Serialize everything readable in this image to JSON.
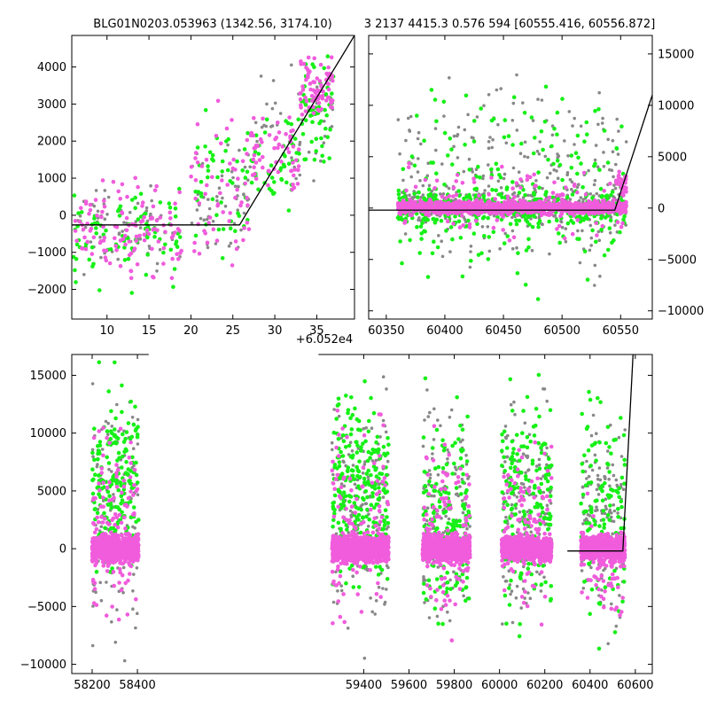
{
  "figure": {
    "title_left": "BLG01N0203.053963 (1342.56, 3174.10)",
    "title_right": "3 2137 4415.3 0.576 594 [60555.416, 60556.872]",
    "offset_label": "+6.052e4",
    "colors": {
      "pink": "#f05cdc",
      "green": "#16f016",
      "grey": "#888888",
      "model": "#000000"
    }
  },
  "chart_data": [
    {
      "id": "zoom-left",
      "type": "scatter",
      "title": "BLG01N0203.053963 (1342.56, 3174.10)",
      "x_offset_label": "+6.052e4",
      "xlim": [
        5.8,
        39.5
      ],
      "ylim": [
        -2800,
        4850
      ],
      "xticks": [
        10,
        15,
        20,
        25,
        30,
        35
      ],
      "yticks": [
        -2000,
        -1000,
        0,
        1000,
        2000,
        3000,
        4000
      ],
      "model_line": {
        "x": [
          5.8,
          25.8,
          39.5
        ],
        "y": [
          -260,
          -260,
          4850
        ]
      },
      "series": [
        {
          "color": "pink",
          "clusters": [
            {
              "x": [
                6,
                19
              ],
              "y": [
                -2200,
                1400
              ],
              "n": 120
            },
            {
              "x": [
                20,
                27
              ],
              "y": [
                -2500,
                3500
              ],
              "n": 60
            },
            {
              "x": [
                27,
                33
              ],
              "y": [
                0,
                3000
              ],
              "n": 60
            },
            {
              "x": [
                33,
                37
              ],
              "y": [
                2000,
                4700
              ],
              "n": 80
            }
          ]
        },
        {
          "color": "green",
          "clusters": [
            {
              "x": [
                6,
                19
              ],
              "y": [
                -2400,
                1400
              ],
              "n": 90
            },
            {
              "x": [
                20,
                27
              ],
              "y": [
                -1500,
                3400
              ],
              "n": 50
            },
            {
              "x": [
                27,
                33
              ],
              "y": [
                -200,
                3200
              ],
              "n": 50
            },
            {
              "x": [
                33,
                37
              ],
              "y": [
                1000,
                4700
              ],
              "n": 60
            }
          ]
        },
        {
          "color": "grey",
          "clusters": [
            {
              "x": [
                6,
                19
              ],
              "y": [
                -2000,
                1200
              ],
              "n": 70
            },
            {
              "x": [
                20,
                27
              ],
              "y": [
                -1500,
                2500
              ],
              "n": 50
            },
            {
              "x": [
                27,
                37
              ],
              "y": [
                0,
                4500
              ],
              "n": 40
            }
          ]
        }
      ]
    },
    {
      "id": "zoom-right",
      "type": "scatter",
      "xlim": [
        60335,
        60577
      ],
      "ylim": [
        -10800,
        16800
      ],
      "xticks": [
        60350,
        60400,
        60450,
        60500,
        60550
      ],
      "yticks": [
        -10000,
        -5000,
        0,
        5000,
        10000,
        15000
      ],
      "model_line": {
        "x": [
          60335,
          60545,
          60577
        ],
        "y": [
          -200,
          -200,
          11000
        ]
      },
      "series": [
        {
          "color": "pink",
          "clusters": [
            {
              "x": [
                60360,
                60555
              ],
              "y": [
                -800,
                900
              ],
              "n": 1000
            },
            {
              "x": [
                60360,
                60555
              ],
              "y": [
                -4000,
                5000
              ],
              "n": 150
            },
            {
              "x": [
                60546,
                60555
              ],
              "y": [
                0,
                5000
              ],
              "n": 30
            }
          ]
        },
        {
          "color": "green",
          "clusters": [
            {
              "x": [
                60360,
                60555
              ],
              "y": [
                -2500,
                2500
              ],
              "n": 350
            },
            {
              "x": [
                60360,
                60555
              ],
              "y": [
                -10500,
                15500
              ],
              "n": 200
            }
          ]
        },
        {
          "color": "grey",
          "clusters": [
            {
              "x": [
                60360,
                60555
              ],
              "y": [
                -2000,
                2500
              ],
              "n": 300
            },
            {
              "x": [
                60360,
                60555
              ],
              "y": [
                -10500,
                16500
              ],
              "n": 250
            }
          ]
        }
      ]
    },
    {
      "id": "full",
      "type": "scatter",
      "xlim": [
        58110,
        60675
      ],
      "ylim": [
        -10800,
        16800
      ],
      "xticks": [
        58200,
        58400,
        59400,
        59600,
        59800,
        60000,
        60200,
        60400,
        60600
      ],
      "yticks": [
        -10000,
        -5000,
        0,
        5000,
        10000,
        15000
      ],
      "axis_gap": [
        58450,
        59200
      ],
      "model_line": {
        "x": [
          60300,
          60545,
          60590
        ],
        "y": [
          -200,
          -200,
          16800
        ]
      },
      "series": [
        {
          "color": "pink",
          "clusters": [
            {
              "x": [
                58200,
                58405
              ],
              "y": [
                -1600,
                1600
              ],
              "n": 900
            },
            {
              "x": [
                59260,
                59510
              ],
              "y": [
                -1600,
                1600
              ],
              "n": 900
            },
            {
              "x": [
                59660,
                59870
              ],
              "y": [
                -1600,
                1600
              ],
              "n": 700
            },
            {
              "x": [
                60010,
                60230
              ],
              "y": [
                -1600,
                1600
              ],
              "n": 700
            },
            {
              "x": [
                60360,
                60555
              ],
              "y": [
                -1600,
                1600
              ],
              "n": 600
            },
            {
              "x": [
                58200,
                58405
              ],
              "y": [
                -10000,
                14000
              ],
              "n": 120
            },
            {
              "x": [
                59260,
                59510
              ],
              "y": [
                -10000,
                14000
              ],
              "n": 120
            },
            {
              "x": [
                59660,
                59870
              ],
              "y": [
                -10000,
                14000
              ],
              "n": 100
            },
            {
              "x": [
                60010,
                60230
              ],
              "y": [
                -10000,
                14000
              ],
              "n": 100
            },
            {
              "x": [
                60360,
                60555
              ],
              "y": [
                -8000,
                5000
              ],
              "n": 60
            }
          ]
        },
        {
          "color": "green",
          "clusters": [
            {
              "x": [
                58200,
                58405
              ],
              "y": [
                -5000,
                16500
              ],
              "n": 200
            },
            {
              "x": [
                59260,
                59510
              ],
              "y": [
                -6000,
                16500
              ],
              "n": 260
            },
            {
              "x": [
                59660,
                59870
              ],
              "y": [
                -9000,
                16000
              ],
              "n": 180
            },
            {
              "x": [
                60010,
                60230
              ],
              "y": [
                -10000,
                16500
              ],
              "n": 200
            },
            {
              "x": [
                60360,
                60555
              ],
              "y": [
                -10000,
                16000
              ],
              "n": 130
            }
          ]
        },
        {
          "color": "grey",
          "clusters": [
            {
              "x": [
                58200,
                58405
              ],
              "y": [
                -10500,
                16000
              ],
              "n": 150
            },
            {
              "x": [
                59260,
                59510
              ],
              "y": [
                -10500,
                16500
              ],
              "n": 170
            },
            {
              "x": [
                59660,
                59870
              ],
              "y": [
                -10500,
                16000
              ],
              "n": 140
            },
            {
              "x": [
                60010,
                60230
              ],
              "y": [
                -10500,
                16500
              ],
              "n": 160
            },
            {
              "x": [
                60360,
                60555
              ],
              "y": [
                -10500,
                16000
              ],
              "n": 140
            }
          ]
        }
      ]
    }
  ]
}
